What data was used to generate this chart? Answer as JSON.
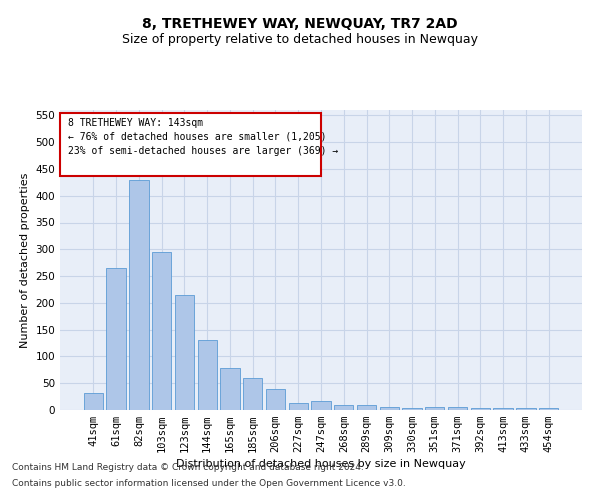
{
  "title": "8, TRETHEWEY WAY, NEWQUAY, TR7 2AD",
  "subtitle": "Size of property relative to detached houses in Newquay",
  "xlabel": "Distribution of detached houses by size in Newquay",
  "ylabel": "Number of detached properties",
  "categories": [
    "41sqm",
    "61sqm",
    "82sqm",
    "103sqm",
    "123sqm",
    "144sqm",
    "165sqm",
    "185sqm",
    "206sqm",
    "227sqm",
    "247sqm",
    "268sqm",
    "289sqm",
    "309sqm",
    "330sqm",
    "351sqm",
    "371sqm",
    "392sqm",
    "413sqm",
    "433sqm",
    "454sqm"
  ],
  "values": [
    31,
    265,
    430,
    295,
    215,
    130,
    78,
    60,
    40,
    14,
    16,
    9,
    10,
    6,
    4,
    5,
    5,
    3,
    4,
    4,
    4
  ],
  "bar_color": "#aec6e8",
  "bar_edge_color": "#5b9bd5",
  "annotation_box_text": "8 TRETHEWEY WAY: 143sqm\n← 76% of detached houses are smaller (1,205)\n23% of semi-detached houses are larger (369) →",
  "annotation_box_edge_color": "#cc0000",
  "footnote_line1": "Contains HM Land Registry data © Crown copyright and database right 2024.",
  "footnote_line2": "Contains public sector information licensed under the Open Government Licence v3.0.",
  "ylim": [
    0,
    560
  ],
  "yticks": [
    0,
    50,
    100,
    150,
    200,
    250,
    300,
    350,
    400,
    450,
    500,
    550
  ],
  "grid_color": "#c8d4e8",
  "bg_color": "#e8eef8",
  "title_fontsize": 10,
  "subtitle_fontsize": 9,
  "axis_label_fontsize": 8,
  "tick_fontsize": 7.5,
  "footnote_fontsize": 6.5
}
